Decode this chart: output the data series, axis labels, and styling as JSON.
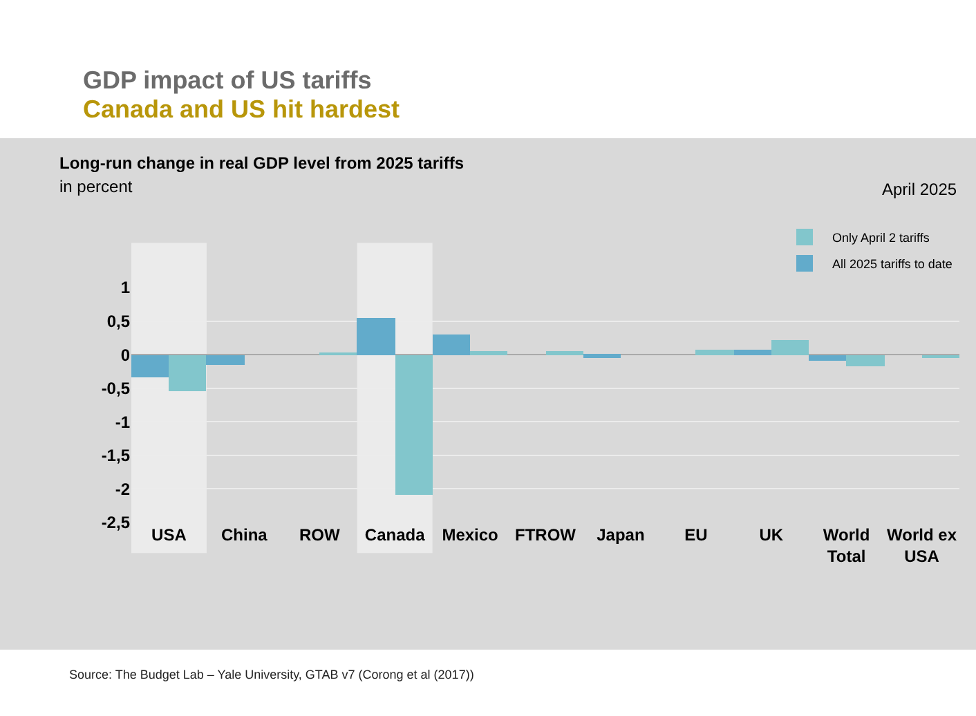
{
  "chart_data": {
    "type": "bar",
    "title": "GDP impact of US tariffs",
    "subtitle": "Canada and US hit hardest",
    "xlabel": null,
    "ylabel": "in percent",
    "annotations": [
      "Long-run change in real GDP level from 2025 tariffs",
      "April 2025",
      "Source: The Budget Lab – Yale University, GTAB v7 (Corong et al (2017))"
    ],
    "categories": [
      "USA",
      "China",
      "ROW",
      "Canada",
      "Mexico",
      "FTROW",
      "Japan",
      "EU",
      "UK",
      "World Total",
      "World ex USA"
    ],
    "series": [
      {
        "name": "All 2025 tariffs to date",
        "color": "#62abcb",
        "values": [
          -0.33,
          -0.16,
          0,
          0.54,
          0.29,
          0,
          -0.04,
          0,
          0.08,
          -0.09,
          0
        ]
      },
      {
        "name": "Only April 2 tariffs",
        "color": "#82c6cc",
        "values": [
          -0.54,
          0,
          0.03,
          -2.08,
          0.05,
          0.05,
          0,
          0.07,
          0.21,
          -0.18,
          -0.05
        ]
      }
    ],
    "ylim": [
      -2.5,
      1
    ],
    "yticks": [
      {
        "value": -2.5,
        "label": "-2,5"
      },
      -2,
      {
        "value": -1.5,
        "label": "-1,5"
      },
      -1,
      {
        "value": -0.5,
        "label": "-0,5"
      },
      0,
      {
        "value": 0.5,
        "label": "0,5"
      },
      1
    ],
    "bands": [
      {
        "axis": "x",
        "from": "USA",
        "to": "USA",
        "color": "#ebebeb"
      },
      {
        "axis": "x",
        "from": "Canada",
        "to": "Canada",
        "color": "#ebebeb"
      }
    ],
    "grid": "y",
    "legend": "top right"
  }
}
